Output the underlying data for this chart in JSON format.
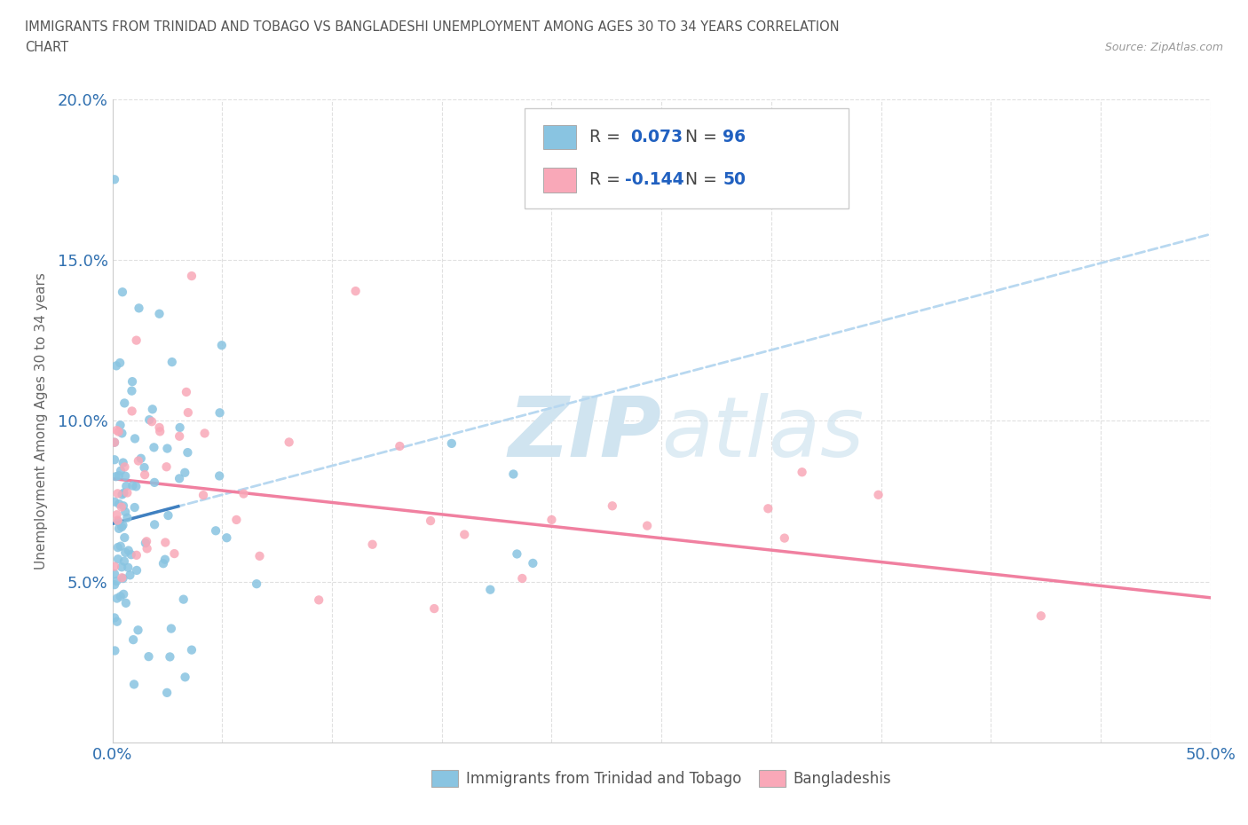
{
  "title_line1": "IMMIGRANTS FROM TRINIDAD AND TOBAGO VS BANGLADESHI UNEMPLOYMENT AMONG AGES 30 TO 34 YEARS CORRELATION",
  "title_line2": "CHART",
  "source": "Source: ZipAtlas.com",
  "ylabel": "Unemployment Among Ages 30 to 34 years",
  "xlim": [
    0,
    0.5
  ],
  "ylim": [
    0,
    0.2
  ],
  "color_blue": "#89c4e1",
  "color_pink": "#f9a8b8",
  "color_trendline_blue": "#b8d8f0",
  "color_trendline_pink": "#f080a0",
  "color_trendline_blue_solid": "#4080c0",
  "legend_label1": "Immigrants from Trinidad and Tobago",
  "legend_label2": "Bangladeshis",
  "background_color": "#ffffff",
  "grid_color": "#e0e0e0",
  "watermark_color": "#d0e4f0"
}
